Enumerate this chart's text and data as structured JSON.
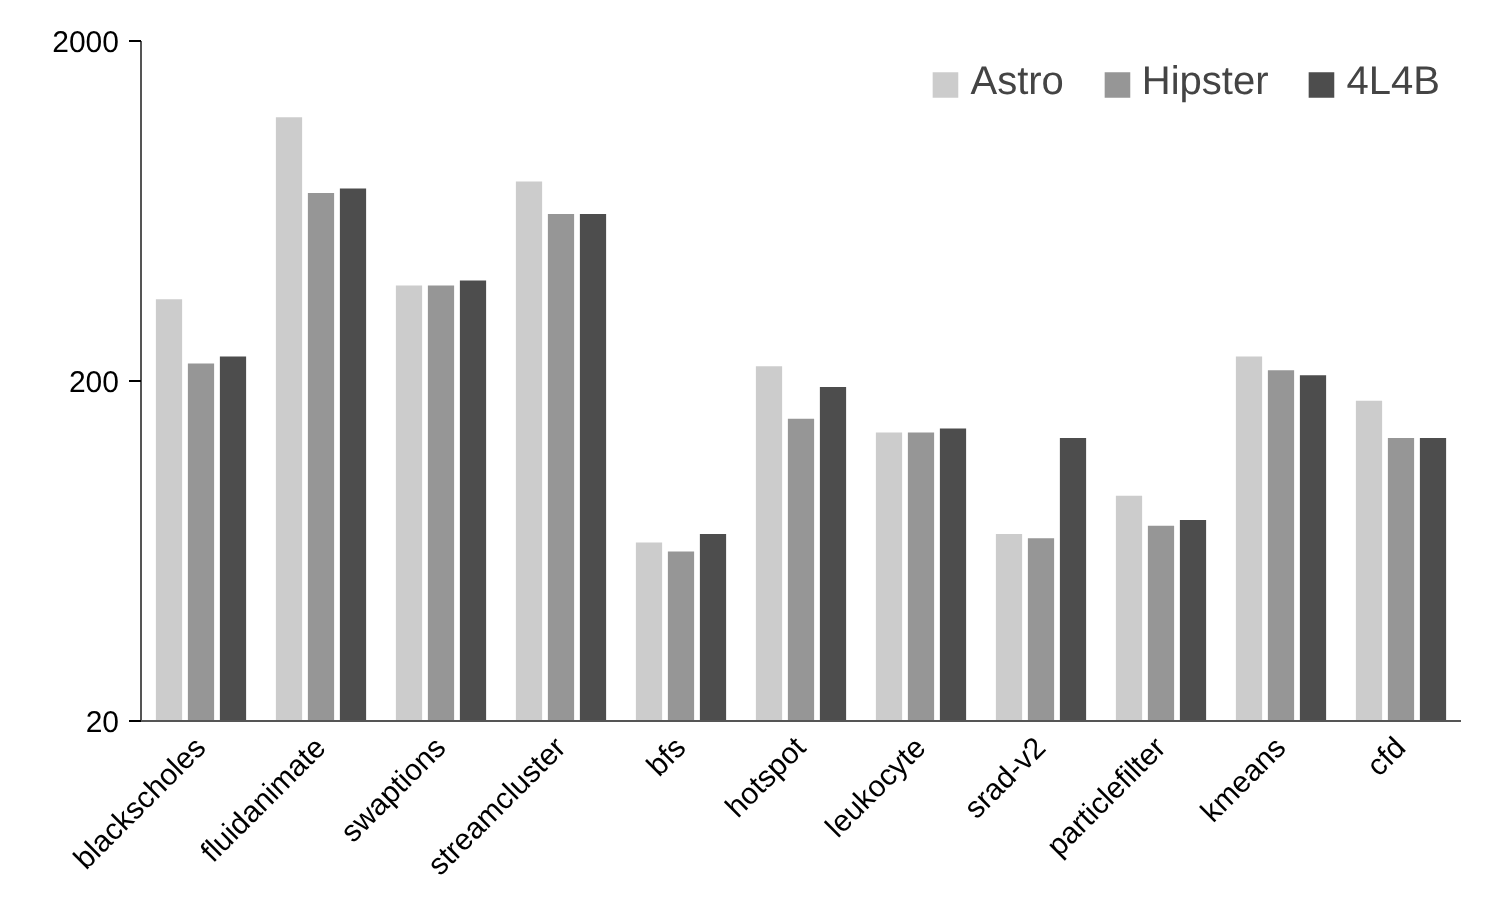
{
  "chart_data": {
    "type": "bar",
    "log": true,
    "ylim": [
      20,
      2000
    ],
    "yticks": [
      20,
      200,
      2000
    ],
    "grid": false,
    "legend": "top right",
    "categories": [
      "blackscholes",
      "fluidanimate",
      "swaptions",
      "streamcluster",
      "bfs",
      "hotspot",
      "leukocyte",
      "srad-v2",
      "particlefilter",
      "kmeans",
      "cfd"
    ],
    "series": [
      {
        "name": "Astro",
        "color": "#cccccc",
        "values": [
          348,
          1194,
          382,
          772,
          67,
          221,
          141,
          71,
          92,
          236,
          175
        ]
      },
      {
        "name": "Hipster",
        "color": "#969696",
        "values": [
          225,
          714,
          382,
          620,
          63,
          155,
          141,
          69,
          75,
          215,
          136
        ]
      },
      {
        "name": "4L4B",
        "color": "#4d4d4d",
        "values": [
          236,
          736,
          395,
          620,
          71,
          192,
          145,
          136,
          78,
          208,
          136
        ]
      }
    ]
  }
}
